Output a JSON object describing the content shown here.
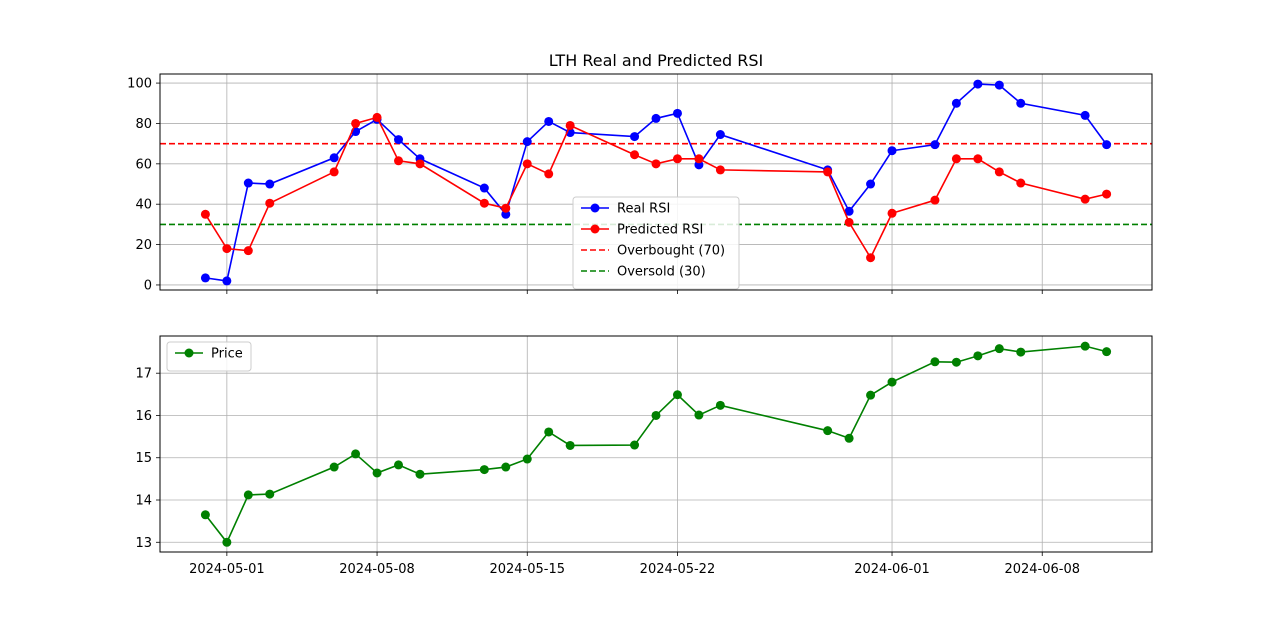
{
  "chart_data": [
    {
      "type": "line",
      "title": "LTH Real and Predicted RSI",
      "xlabel": "",
      "ylabel": "",
      "ylim": [
        -2.5,
        104.5
      ],
      "yticks": [
        0,
        20,
        40,
        60,
        80,
        100
      ],
      "x_ticks": [
        "2024-05-01",
        "2024-05-08",
        "2024-05-15",
        "2024-05-22",
        "2024-06-01",
        "2024-06-08"
      ],
      "grid": true,
      "legend_position": "center",
      "series": [
        {
          "name": "Real RSI",
          "color": "#0000ff",
          "x": [
            "2024-04-30",
            "2024-05-01",
            "2024-05-02",
            "2024-05-03",
            "2024-05-06",
            "2024-05-07",
            "2024-05-08",
            "2024-05-09",
            "2024-05-10",
            "2024-05-13",
            "2024-05-14",
            "2024-05-15",
            "2024-05-16",
            "2024-05-17",
            "2024-05-20",
            "2024-05-21",
            "2024-05-22",
            "2024-05-23",
            "2024-05-24",
            "2024-05-29",
            "2024-05-30",
            "2024-05-31",
            "2024-06-01",
            "2024-06-03",
            "2024-06-04",
            "2024-06-05",
            "2024-06-06",
            "2024-06-07",
            "2024-06-10",
            "2024-06-11"
          ],
          "values": [
            3.5,
            2,
            50.5,
            50,
            63,
            76,
            82,
            72,
            62.5,
            48,
            35,
            71,
            81,
            75.5,
            73.5,
            82.5,
            85,
            59.5,
            74.5,
            57,
            36.5,
            50,
            66.5,
            69.5,
            90,
            99.5,
            99,
            90,
            84,
            69.5
          ]
        },
        {
          "name": "Predicted RSI",
          "color": "#ff0000",
          "x": [
            "2024-04-30",
            "2024-05-01",
            "2024-05-02",
            "2024-05-03",
            "2024-05-06",
            "2024-05-07",
            "2024-05-08",
            "2024-05-09",
            "2024-05-10",
            "2024-05-13",
            "2024-05-14",
            "2024-05-15",
            "2024-05-16",
            "2024-05-17",
            "2024-05-20",
            "2024-05-21",
            "2024-05-22",
            "2024-05-23",
            "2024-05-24",
            "2024-05-29",
            "2024-05-30",
            "2024-05-31",
            "2024-06-01",
            "2024-06-03",
            "2024-06-04",
            "2024-06-05",
            "2024-06-06",
            "2024-06-07",
            "2024-06-10",
            "2024-06-11"
          ],
          "values": [
            35,
            18,
            17,
            40.5,
            56,
            80,
            83,
            61.5,
            60,
            40.5,
            38,
            60,
            55,
            79,
            64.5,
            60,
            62.5,
            62.5,
            57,
            56,
            31,
            13.5,
            35.5,
            42,
            62.5,
            62.5,
            56,
            50.5,
            42.5,
            45
          ]
        }
      ],
      "reference_lines": [
        {
          "name": "Overbought (70)",
          "y": 70,
          "color": "#ff0000"
        },
        {
          "name": "Oversold (30)",
          "y": 30,
          "color": "#008000"
        }
      ]
    },
    {
      "type": "line",
      "title": "",
      "xlabel": "",
      "ylabel": "",
      "ylim": [
        12.77,
        17.88
      ],
      "yticks": [
        13,
        14,
        15,
        16,
        17
      ],
      "x_ticks": [
        "2024-05-01",
        "2024-05-08",
        "2024-05-15",
        "2024-05-22",
        "2024-06-01",
        "2024-06-08"
      ],
      "grid": true,
      "legend_position": "top-left",
      "series": [
        {
          "name": "Price",
          "color": "#008000",
          "x": [
            "2024-04-30",
            "2024-05-01",
            "2024-05-02",
            "2024-05-03",
            "2024-05-06",
            "2024-05-07",
            "2024-05-08",
            "2024-05-09",
            "2024-05-10",
            "2024-05-13",
            "2024-05-14",
            "2024-05-15",
            "2024-05-16",
            "2024-05-17",
            "2024-05-20",
            "2024-05-21",
            "2024-05-22",
            "2024-05-23",
            "2024-05-24",
            "2024-05-29",
            "2024-05-30",
            "2024-05-31",
            "2024-06-01",
            "2024-06-03",
            "2024-06-04",
            "2024-06-05",
            "2024-06-06",
            "2024-06-07",
            "2024-06-10",
            "2024-06-11"
          ],
          "values": [
            13.65,
            13.0,
            14.12,
            14.14,
            14.78,
            15.09,
            14.64,
            14.83,
            14.61,
            14.72,
            14.78,
            14.97,
            15.61,
            15.29,
            15.3,
            16.0,
            16.49,
            16.01,
            16.24,
            15.64,
            15.46,
            16.48,
            16.79,
            17.27,
            17.26,
            17.41,
            17.58,
            17.5,
            17.64,
            17.51
          ]
        }
      ]
    }
  ]
}
